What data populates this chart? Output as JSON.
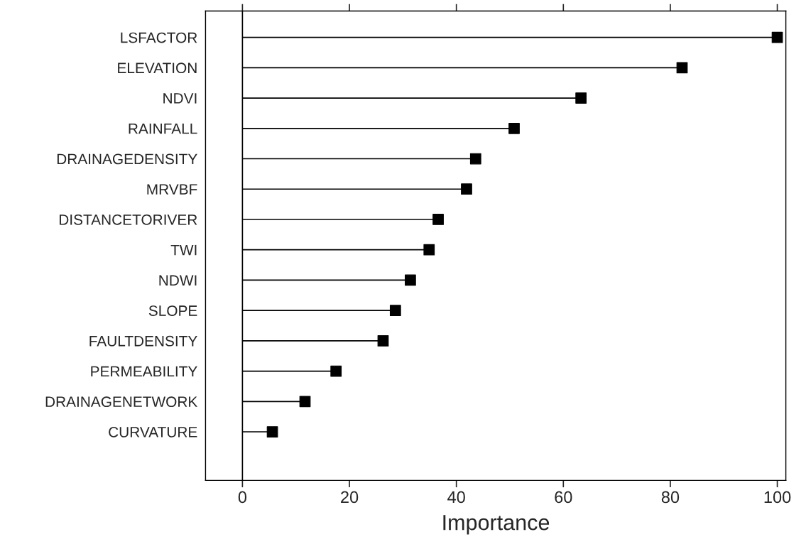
{
  "chart_data": {
    "type": "lollipop",
    "orientation": "horizontal",
    "xlabel": "Importance",
    "categories": [
      "LSFACTOR",
      "ELEVATION",
      "NDVI",
      "RAINFALL",
      "DRAINAGEDENSITY",
      "MRVBF",
      "DISTANCETORIVER",
      "TWI",
      "NDWI",
      "SLOPE",
      "FAULTDENSITY",
      "PERMEABILITY",
      "DRAINAGENETWORK",
      "CURVATURE"
    ],
    "values": [
      100,
      82.2,
      63.3,
      50.8,
      43.6,
      41.9,
      36.6,
      34.9,
      31.4,
      28.6,
      26.3,
      17.5,
      11.7,
      5.6
    ],
    "color": "#000000",
    "marker": "square",
    "xlim": [
      -6.9,
      101.6
    ],
    "xticks": [
      0,
      20,
      40,
      60,
      80,
      100
    ],
    "ref_lines": [
      {
        "axis": "x",
        "value": 0,
        "color": "#000000",
        "line_style": "solid"
      }
    ],
    "grid": false,
    "legend": false
  }
}
